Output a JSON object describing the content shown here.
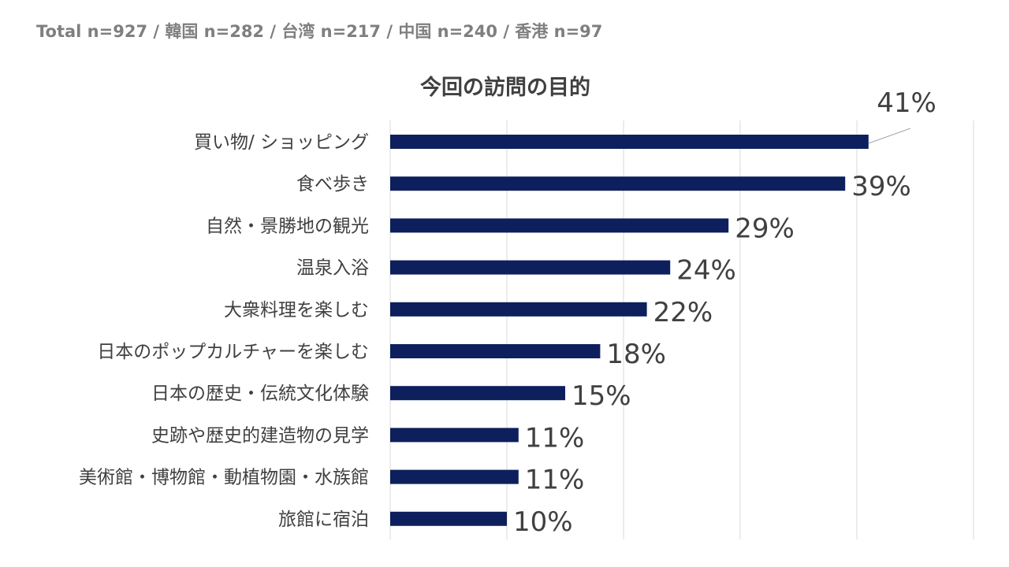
{
  "header": {
    "sample_note": "Total n=927 / 韓国 n=282 / 台湾 n=217 / 中国 n=240 / 香港 n=97"
  },
  "chart_data": {
    "type": "bar",
    "orientation": "horizontal",
    "title": "今回の訪問の目的",
    "categories": [
      "買い物/ ショッピング",
      "食べ歩き",
      "自然・景勝地の観光",
      "温泉入浴",
      "大衆料理を楽しむ",
      "日本のポップカルチャーを楽しむ",
      "日本の歴史・伝統文化体験",
      "史跡や歴史的建造物の見学",
      "美術館・博物館・動植物園・水族館",
      "旅館に宿泊"
    ],
    "values": [
      41,
      39,
      29,
      24,
      22,
      18,
      15,
      11,
      11,
      10
    ],
    "value_labels": [
      "41%",
      "39%",
      "29%",
      "24%",
      "22%",
      "18%",
      "15%",
      "11%",
      "11%",
      "10%"
    ],
    "xlim": [
      0,
      50
    ],
    "grid": true,
    "bar_color": "#0d1f5c",
    "gridline_color": "#d9d9d9",
    "text_color": "#404040"
  }
}
